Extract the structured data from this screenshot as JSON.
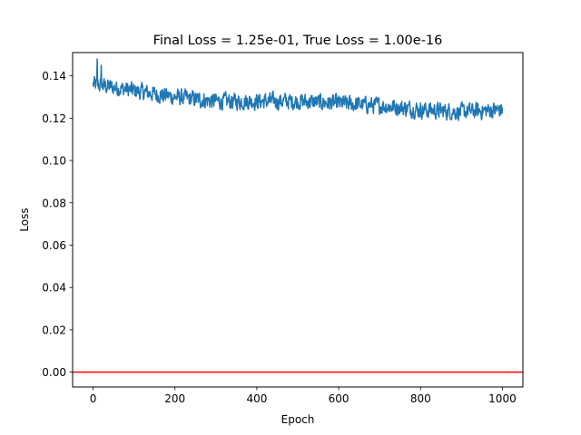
{
  "chart_data": {
    "type": "line",
    "title": "Final Loss = 1.25e-01, True Loss = 1.00e-16",
    "xlabel": "Epoch",
    "ylabel": "Loss",
    "xlim": [
      -50,
      1050
    ],
    "ylim": [
      -0.007,
      0.151
    ],
    "xticks": [
      0,
      200,
      400,
      600,
      800,
      1000
    ],
    "xtick_labels": [
      "0",
      "200",
      "400",
      "600",
      "800",
      "1000"
    ],
    "yticks": [
      0.0,
      0.02,
      0.04,
      0.06,
      0.08,
      0.1,
      0.12,
      0.14
    ],
    "ytick_labels": [
      "0.00",
      "0.02",
      "0.04",
      "0.06",
      "0.08",
      "0.10",
      "0.12",
      "0.14"
    ],
    "grid": false,
    "series": [
      {
        "color": "#1f77b4",
        "x_range": [
          0,
          1000
        ],
        "trend": [
          [
            0,
            0.136
          ],
          [
            100,
            0.133
          ],
          [
            200,
            0.13
          ],
          [
            300,
            0.128
          ],
          [
            400,
            0.128
          ],
          [
            500,
            0.128
          ],
          [
            600,
            0.127
          ],
          [
            700,
            0.126
          ],
          [
            800,
            0.124
          ],
          [
            900,
            0.123
          ],
          [
            1000,
            0.124
          ]
        ],
        "noise_amplitude": 0.0035,
        "peaks": [
          [
            10,
            0.148
          ],
          [
            20,
            0.145
          ]
        ],
        "final_value": 0.125
      },
      {
        "color": "#ff0000",
        "y_constant": 1e-16
      }
    ]
  }
}
